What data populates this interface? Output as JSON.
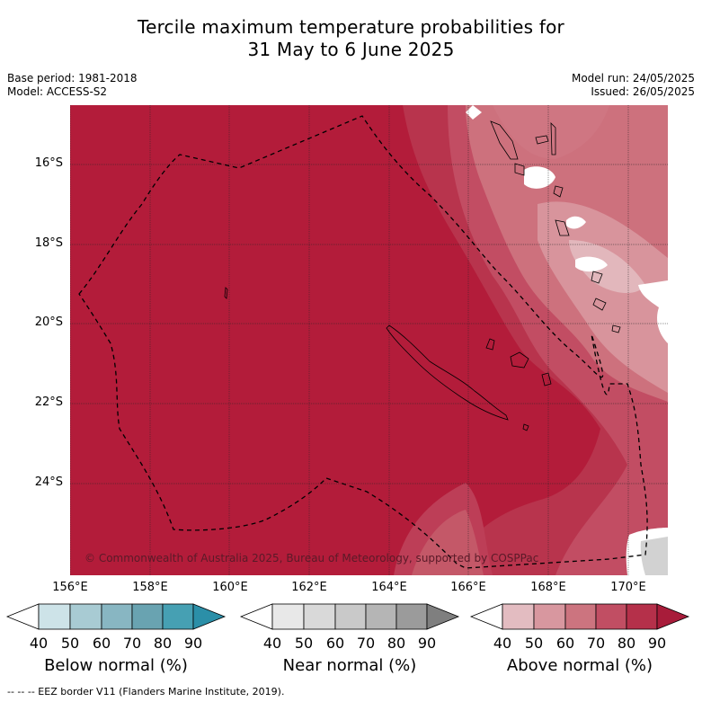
{
  "title": {
    "line1": "Tercile maximum temperature probabilities for",
    "line2": "31 May to 6 June 2025"
  },
  "meta": {
    "base_period": "Base period: 1981-2018",
    "model": "Model: ACCESS-S2",
    "model_run": "Model run: 24/05/2025",
    "issued": "Issued: 26/05/2025"
  },
  "map": {
    "lat_labels": [
      "16°S",
      "18°S",
      "20°S",
      "22°S",
      "24°S"
    ],
    "lon_labels": [
      "156°E",
      "158°E",
      "160°E",
      "162°E",
      "164°E",
      "166°E",
      "168°E",
      "170°E"
    ],
    "copyright": "© Commonwealth of Australia 2025, Bureau of Meteorology, supported by COSPPac",
    "dominant_category": "Above normal",
    "dominant_probability_range": "80-90",
    "colors": {
      "above_90": "#b31c3a",
      "above_80": "#b5304a",
      "above_70": "#c14e63",
      "above_60": "#cd747f",
      "above_50": "#d9979f",
      "above_40": "#e4bcc1",
      "white": "#ffffff",
      "near": "#d2d2d2"
    }
  },
  "colorbars": {
    "ticks": [
      "40",
      "50",
      "60",
      "70",
      "80",
      "90"
    ],
    "below": {
      "label": "Below normal (%)",
      "colors": [
        "#cde3e8",
        "#a8cbd3",
        "#88b6c2",
        "#69a3b1",
        "#46a0b3",
        "#2b8fa8"
      ]
    },
    "near": {
      "label": "Near normal (%)",
      "colors": [
        "#e8e8e8",
        "#d9d9d9",
        "#c9c9c9",
        "#b5b5b5",
        "#9b9b9b",
        "#7f7f7f"
      ]
    },
    "above": {
      "label": "Above normal (%)",
      "colors": [
        "#e3bcc1",
        "#d8979f",
        "#cc747f",
        "#c14e63",
        "#b5304a",
        "#a81c3a"
      ]
    }
  },
  "footnote": "--  --  -- EEZ border V11 (Flanders Marine Institute, 2019)."
}
